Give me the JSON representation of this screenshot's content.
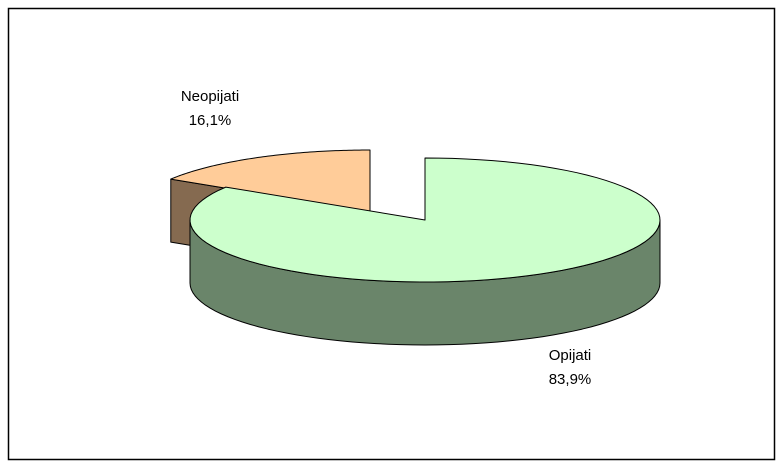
{
  "chart_data": {
    "type": "pie3d",
    "categories": [
      "Neopijati",
      "Opijati"
    ],
    "values": [
      16.1,
      83.9
    ],
    "value_labels": [
      "16,1%",
      "83,9%"
    ],
    "colors": [
      "#ffcc99",
      "#ccffcc"
    ]
  }
}
